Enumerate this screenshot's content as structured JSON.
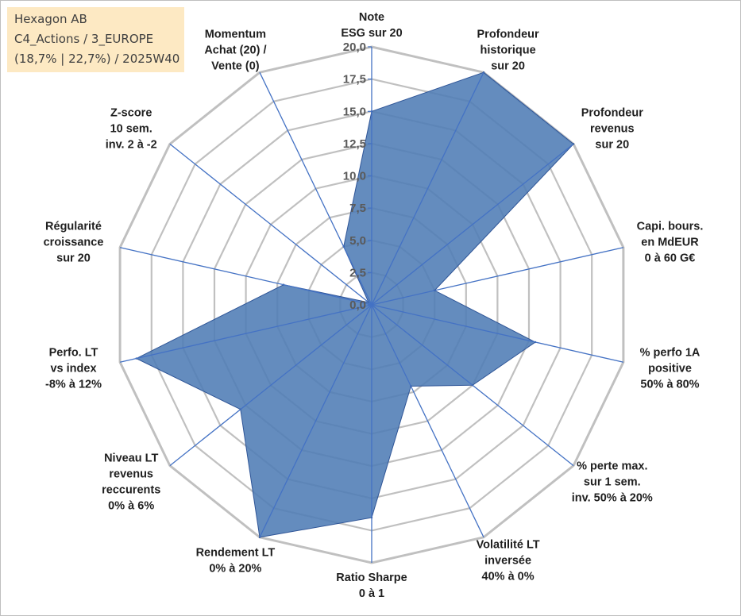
{
  "info_box": {
    "line1": "Hexagon AB",
    "line2": "C4_Actions / 3_EUROPE",
    "line3": "(18,7% | 22,7%) / 2025W40"
  },
  "colors": {
    "grid": "#c0c0c0",
    "spoke": "#4472c4",
    "fill": "#4f7cb5",
    "series_stroke": "#2f5597",
    "info_bg": "#fde9c3"
  },
  "chart_data": {
    "type": "radar",
    "rmin": 0,
    "rmax": 20,
    "ticks": [
      "0,0",
      "2,5",
      "5,0",
      "7,5",
      "10,0",
      "12,5",
      "15,0",
      "17,5",
      "20,0"
    ],
    "axes": [
      {
        "lines": [
          "Note",
          "ESG sur 20"
        ],
        "value": 15.0
      },
      {
        "lines": [
          "Profondeur",
          "historique",
          "sur 20"
        ],
        "value": 20.0
      },
      {
        "lines": [
          "Profondeur",
          "revenus",
          "sur 20"
        ],
        "value": 20.0
      },
      {
        "lines": [
          "Capi. bours.",
          "en MdEUR",
          "0 à 60 G€"
        ],
        "value": 5.0
      },
      {
        "lines": [
          "% perfo 1A",
          "positive",
          "50% à 80%"
        ],
        "value": 13.0
      },
      {
        "lines": [
          "% perte max.",
          "sur 1 sem.",
          "inv. 50% à 20%"
        ],
        "value": 10.0
      },
      {
        "lines": [
          "Volatilité LT",
          "inversée",
          "40% à 0%"
        ],
        "value": 7.0
      },
      {
        "lines": [
          "Ratio Sharpe",
          "0 à 1"
        ],
        "value": 16.5
      },
      {
        "lines": [
          "Rendement LT",
          "0% à 20%"
        ],
        "value": 20.0
      },
      {
        "lines": [
          "Niveau LT",
          "revenus",
          "reccurents",
          "0% à 6%"
        ],
        "value": 13.0
      },
      {
        "lines": [
          "Perfo. LT",
          "vs index",
          "-8% à 12%"
        ],
        "value": 18.7
      },
      {
        "lines": [
          "Régularité",
          "croissance",
          "sur 20"
        ],
        "value": 7.0
      },
      {
        "lines": [
          "Z-score",
          "10 sem.",
          "inv. 2 à -2"
        ],
        "value": 0.3
      },
      {
        "lines": [
          "Momentum",
          "Achat (20) /",
          "Vente (0)"
        ],
        "value": 5.0
      }
    ]
  }
}
